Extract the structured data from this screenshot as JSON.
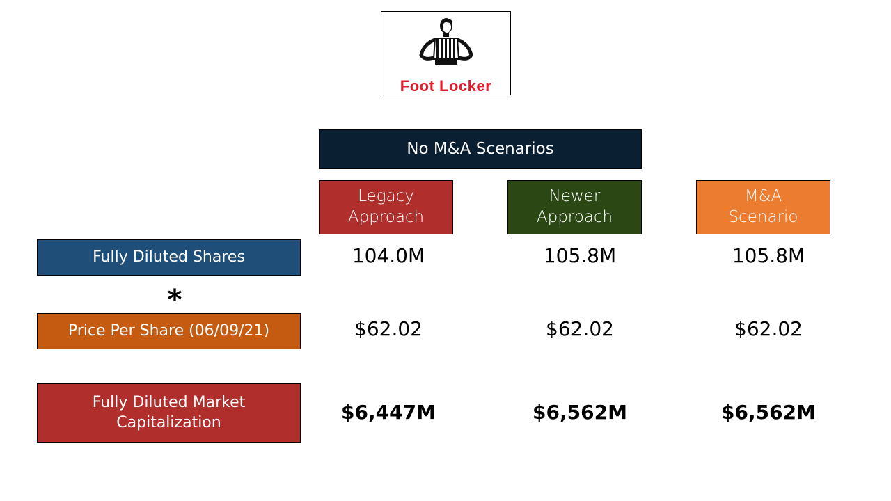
{
  "logo": {
    "brand_name": "Foot Locker",
    "icon": "referee-figure-icon"
  },
  "header": {
    "title": "No M&A Scenarios"
  },
  "columns": [
    {
      "label": "Legacy Approach",
      "color": "#b02e2b"
    },
    {
      "label": "Newer Approach",
      "color": "#2b4713"
    },
    {
      "label": "M&A Scenario",
      "color": "#ec7c30"
    }
  ],
  "rows": [
    {
      "label": "Fully Diluted Shares",
      "color": "#1f4e79",
      "values": [
        "104.0M",
        "105.8M",
        "105.8M"
      ]
    },
    {
      "label": "Price Per Share (06/09/21)",
      "color": "#c55a11",
      "values": [
        "$62.02",
        "$62.02",
        "$62.02"
      ]
    },
    {
      "label": "Fully Diluted Market Capitalization",
      "color": "#b02e2b",
      "values": [
        "$6,447M",
        "$6,562M",
        "$6,562M"
      ]
    }
  ],
  "operator": "*",
  "colors": {
    "header_bg": "#0b1f33",
    "logo_red": "#e21b2d"
  }
}
